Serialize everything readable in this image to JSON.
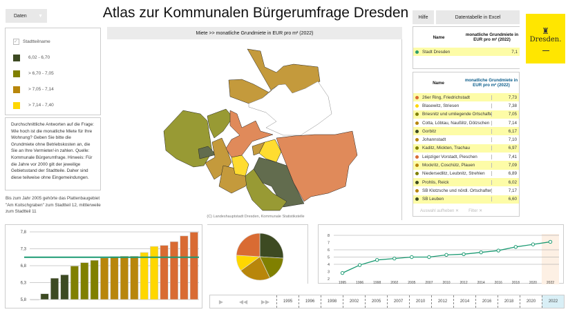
{
  "title": "Atlas zur Kommunalen Bürgerumfrage Dresden",
  "dropdown": {
    "label": "Daten"
  },
  "legend": {
    "checkbox_label": "Stadtteilname",
    "checked": true,
    "items": [
      {
        "label": "6,02 - 6,70",
        "color": "#3d4a22"
      },
      {
        "label": "> 6,70 - 7,05",
        "color": "#808000"
      },
      {
        "label": "> 7,05 - 7,14",
        "color": "#b8860b"
      },
      {
        "label": "> 7,14 - 7,40",
        "color": "#ffd700"
      },
      {
        "label": "> 7,40 - 7,73",
        "color": "#d96b33"
      }
    ]
  },
  "description": "Durchschnittliche Antworten auf die Frage: Wie hoch ist die monatliche Miete für Ihre Wohnung? Geben Sie bitte die Grundmiete ohne Betriebskosten an, die Sie an Ihre Vermieter/-in zahlen. Quelle: Kommunale Bürgerumfrage. Hinweis: Für die Jahre vor 2000 gilt der jeweilige Gebietsstand der Stadtteile. Daher sind diese teilweise ohne Eingemeindungen.",
  "note": "Bis zum Jahr 2005 gehörte das Plattenbaugebiet \"Am Koitschgraben\" zum Stadtteil 12, mittlerweile zum Stadtteil 11",
  "map": {
    "header": "Miete >> monatliche Grundmiete in EUR pro m² (2022)",
    "source": "(C) Landeshauptstadt Dresden, Kommunale Statistikstelle"
  },
  "buttons": {
    "help": "Hilfe",
    "excel": "Datentabelle in Excel"
  },
  "logo": {
    "text": "Dresden."
  },
  "city_table": {
    "col_name": "Name",
    "col_value": "monatliche Grundmiete in EUR pro m² (2022)",
    "rows": [
      {
        "name": "Stadt Dresden",
        "value": "7,1",
        "color": "#2e9e6e"
      }
    ]
  },
  "district_table": {
    "col_name": "Name",
    "col_value": "monatliche Grundmiete in EUR pro m² (2022)",
    "rows": [
      {
        "name": "26er Ring, Friedrichstadt",
        "value": "7,73",
        "color": "#d96b33"
      },
      {
        "name": "Blasewitz, Striesen",
        "value": "7,38",
        "color": "#ffd700"
      },
      {
        "name": "Briesnitz und umliegende Ortschaften",
        "value": "7,05",
        "color": "#808000"
      },
      {
        "name": "Cotta, Löbtau, Naußlitz, Dölzschen",
        "value": "7,14",
        "color": "#b8860b"
      },
      {
        "name": "Gorbitz",
        "value": "6,17",
        "color": "#3d4a22"
      },
      {
        "name": "Johannstadt",
        "value": "7,10",
        "color": "#b8860b"
      },
      {
        "name": "Kaditz, Mickten, Trachau",
        "value": "6,97",
        "color": "#808000"
      },
      {
        "name": "Leipziger Vorstadt, Pieschen",
        "value": "7,41",
        "color": "#d96b33"
      },
      {
        "name": "Mockritz, Coschütz, Plauen",
        "value": "7,09",
        "color": "#b8860b"
      },
      {
        "name": "Niedersedlitz, Leubnitz, Strehlen",
        "value": "6,89",
        "color": "#808000"
      },
      {
        "name": "Prohlis, Reick",
        "value": "6,02",
        "color": "#3d4a22"
      },
      {
        "name": "SB Klotzsche und nördl. Ortschaften",
        "value": "7,17",
        "color": "#b8860b"
      },
      {
        "name": "SB Leuben",
        "value": "6,60",
        "color": "#3d4a22"
      },
      {
        "name": "SB Loschwitz und Schönfeld-Weißig",
        "value": "7,53",
        "color": "#d96b33"
      }
    ],
    "clear_selection": "Auswahl aufheben",
    "filter": "Filter"
  },
  "chart_data": [
    {
      "type": "bar",
      "ylim": [
        5.8,
        7.8
      ],
      "yticks": [
        "5,8",
        "6,3",
        "6,8",
        "7,3",
        "7,8"
      ],
      "average_line": 7.05,
      "average_color": "#1a9a72",
      "values": [
        5.8,
        5.97,
        6.43,
        6.53,
        6.79,
        6.89,
        6.96,
        7.03,
        7.07,
        7.08,
        7.08,
        7.19,
        7.37,
        7.4,
        7.51,
        7.68,
        7.79
      ],
      "colors": [
        "#e8e8e8",
        "#3d4a22",
        "#3d4a22",
        "#3d4a22",
        "#808000",
        "#808000",
        "#808000",
        "#b8860b",
        "#b8860b",
        "#b8860b",
        "#b8860b",
        "#ffd700",
        "#ffd700",
        "#d96b33",
        "#d96b33",
        "#d96b33",
        "#d96b33"
      ]
    },
    {
      "type": "pie",
      "values": [
        26,
        17,
        22,
        11,
        24
      ],
      "colors": [
        "#3d4a22",
        "#808000",
        "#b8860b",
        "#ffd700",
        "#d96b33"
      ]
    },
    {
      "type": "line",
      "ylim": [
        2,
        8
      ],
      "yticks": [
        "2",
        "3",
        "4",
        "5",
        "6",
        "7",
        "8"
      ],
      "color": "#1a9a72",
      "categories": [
        "1995",
        "1996",
        "1998",
        "2002",
        "2005",
        "2007",
        "2010",
        "2012",
        "2014",
        "2016",
        "2018",
        "2020",
        "2022"
      ],
      "values": [
        2.8,
        3.9,
        4.6,
        4.8,
        5.0,
        5.0,
        5.3,
        5.4,
        5.65,
        5.9,
        6.4,
        6.75,
        7.1
      ],
      "highlight": "2022"
    }
  ],
  "timeline": {
    "years": [
      "1995",
      "1996",
      "1998",
      "2002",
      "2005",
      "2007",
      "2010",
      "2012",
      "2014",
      "2016",
      "2018",
      "2020",
      "2022"
    ],
    "selected": "2022"
  }
}
